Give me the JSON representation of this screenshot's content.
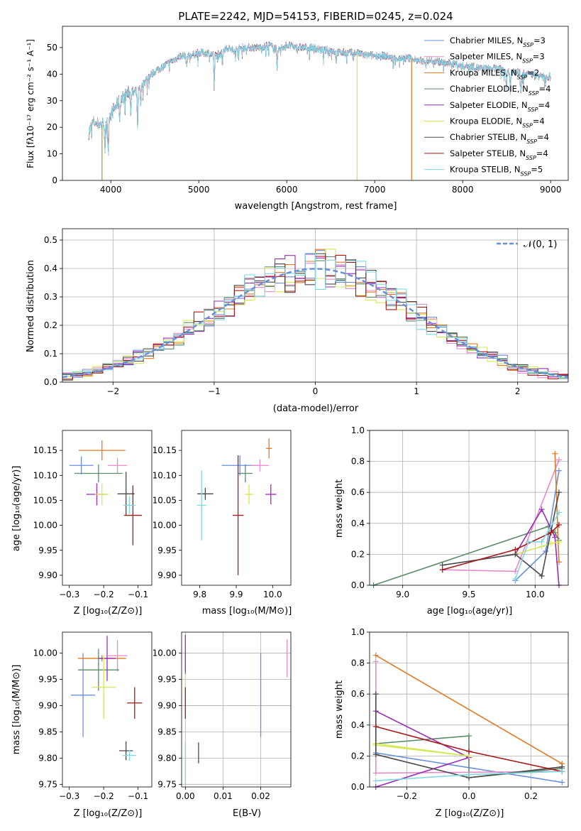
{
  "figure_title": "PLATE=2242, MJD=54153, FIBERID=0245, z=0.024",
  "labels": {
    "spec_y": "Flux [fλ10⁻¹⁷ erg cm⁻² s⁻¹ A⁻¹]",
    "spec_x": "wavelength [Angstrom, rest frame]",
    "hist_y": "Normed distribution",
    "hist_x": "(data-model)/error",
    "normal_legend": "𝒩(0, 1)",
    "age_y": "age  [log₁₀(age/yr)]",
    "Z_x": "Z [log₁₀(Z/Z⊙)]",
    "mass_x": "mass [log₁₀(M/M⊙)]",
    "mass_y": "mass [log₁₀(M/M⊙)]",
    "ebv_x": "E(B-V)",
    "mw_y": "mass weight",
    "age_x": "age  [log₁₀(age/yr)]"
  },
  "models": [
    {
      "name": "Chabrier MILES, N",
      "sub": "SSP",
      "n": "=3",
      "color": "#6a8fdc"
    },
    {
      "name": "Salpeter MILES, N",
      "sub": "SSP",
      "n": "=3",
      "color": "#e88ac8"
    },
    {
      "name": "Kroupa MILES, N",
      "sub": "SSP",
      "n": "=2",
      "color": "#e37a23"
    },
    {
      "name": "Chabrier ELODIE, N",
      "sub": "SSP",
      "n": "=4",
      "color": "#5a8c68"
    },
    {
      "name": "Salpeter ELODIE, N",
      "sub": "SSP",
      "n": "=4",
      "color": "#9a2cba"
    },
    {
      "name": "Kroupa ELODIE, N",
      "sub": "SSP",
      "n": "=4",
      "color": "#d6e855"
    },
    {
      "name": "Chabrier STELIB, N",
      "sub": "SSP",
      "n": "=4",
      "color": "#4a4a4a"
    },
    {
      "name": "Salpeter STELIB, N",
      "sub": "SSP",
      "n": "=4",
      "color": "#a8181a"
    },
    {
      "name": "Kroupa STELIB, N",
      "sub": "SSP",
      "n": "=5",
      "color": "#7fd8e0"
    }
  ],
  "chart_data": [
    {
      "type": "line",
      "panel": "spectrum",
      "xlim": [
        3450,
        9200
      ],
      "ylim": [
        0,
        58
      ],
      "xticks": [
        4000,
        5000,
        6000,
        7000,
        8000,
        9000
      ],
      "yticks": [
        0,
        10,
        20,
        30,
        40,
        50
      ],
      "grid": false,
      "legend": "top-right",
      "continuum": [
        [
          3750,
          18
        ],
        [
          3800,
          22
        ],
        [
          3900,
          21
        ],
        [
          4000,
          25
        ],
        [
          4100,
          30
        ],
        [
          4200,
          33
        ],
        [
          4300,
          33
        ],
        [
          4400,
          38
        ],
        [
          4500,
          41
        ],
        [
          4600,
          43
        ],
        [
          4700,
          45
        ],
        [
          4800,
          47
        ],
        [
          4900,
          47
        ],
        [
          5000,
          48
        ],
        [
          5100,
          48
        ],
        [
          5200,
          47
        ],
        [
          5300,
          50
        ],
        [
          5400,
          49
        ],
        [
          5500,
          50
        ],
        [
          5600,
          50
        ],
        [
          5700,
          50
        ],
        [
          5800,
          51
        ],
        [
          5900,
          49
        ],
        [
          6000,
          51
        ],
        [
          6100,
          50
        ],
        [
          6200,
          50
        ],
        [
          6300,
          50
        ],
        [
          6400,
          49
        ],
        [
          6500,
          49
        ],
        [
          6600,
          48
        ],
        [
          6700,
          48
        ],
        [
          6800,
          48
        ],
        [
          6900,
          47
        ],
        [
          7000,
          47
        ],
        [
          7100,
          47
        ],
        [
          7200,
          46
        ],
        [
          7300,
          46
        ],
        [
          7400,
          46
        ],
        [
          7500,
          45
        ],
        [
          7600,
          45
        ],
        [
          7700,
          45
        ],
        [
          7800,
          44
        ],
        [
          7900,
          44
        ],
        [
          8000,
          43
        ],
        [
          8100,
          43
        ],
        [
          8200,
          42
        ],
        [
          8300,
          42
        ],
        [
          8400,
          42
        ],
        [
          8500,
          41
        ],
        [
          8600,
          41
        ],
        [
          8700,
          40
        ],
        [
          8800,
          40
        ],
        [
          8900,
          39
        ],
        [
          9000,
          39
        ]
      ],
      "absorption": [
        [
          3934,
          14
        ],
        [
          3969,
          14
        ],
        [
          4102,
          8
        ],
        [
          4227,
          7
        ],
        [
          4304,
          16
        ],
        [
          4340,
          8
        ],
        [
          4861,
          5
        ],
        [
          5175,
          14
        ],
        [
          5270,
          6
        ],
        [
          5890,
          9
        ],
        [
          6563,
          4
        ],
        [
          8498,
          7
        ],
        [
          8542,
          8
        ],
        [
          8662,
          7
        ]
      ],
      "dropouts": [
        {
          "x": 3900,
          "color": "#a8a83a"
        },
        {
          "x": 6800,
          "color": "#d6e855"
        },
        {
          "x": 7420,
          "color": "#e37a23"
        }
      ]
    },
    {
      "type": "bar",
      "panel": "residual-histogram",
      "xlim": [
        -2.5,
        2.5
      ],
      "ylim": [
        0,
        0.54
      ],
      "xticks": [
        -2,
        -1,
        0,
        1,
        2
      ],
      "yticks": [
        0.0,
        0.1,
        0.2,
        0.3,
        0.4,
        0.5
      ],
      "grid": true,
      "legend": "top-right",
      "normal_mu": 0,
      "normal_sigma": 1
    },
    {
      "type": "scatter",
      "panel": "age-vs-Z",
      "xlim": [
        -0.32,
        -0.06
      ],
      "ylim": [
        9.88,
        10.19
      ],
      "xticks": [
        -0.3,
        -0.2,
        -0.1
      ],
      "yticks": [
        9.9,
        9.95,
        10.0,
        10.05,
        10.1,
        10.15
      ],
      "grid": false,
      "points": [
        {
          "m": 0,
          "x": -0.265,
          "y": 10.12,
          "dx": 0.035,
          "dy": 0.018
        },
        {
          "m": 1,
          "x": -0.16,
          "y": 10.12,
          "dx": 0.028,
          "dy": 0.015
        },
        {
          "m": 2,
          "x": -0.205,
          "y": 10.15,
          "dx": 0.068,
          "dy": 0.02
        },
        {
          "m": 3,
          "x": -0.215,
          "y": 10.104,
          "dx": 0.07,
          "dy": 0.018
        },
        {
          "m": 4,
          "x": -0.22,
          "y": 10.062,
          "dx": 0.03,
          "dy": 0.022
        },
        {
          "m": 5,
          "x": -0.205,
          "y": 10.062,
          "dx": 0.02,
          "dy": 0.022
        },
        {
          "m": 6,
          "x": -0.135,
          "y": 10.063,
          "dx": 0.025,
          "dy": 0.044
        },
        {
          "m": 7,
          "x": -0.115,
          "y": 10.02,
          "dx": 0.026,
          "dy": 0.06
        },
        {
          "m": 8,
          "x": -0.125,
          "y": 10.04,
          "dx": 0.018,
          "dy": 0.018
        }
      ]
    },
    {
      "type": "scatter",
      "panel": "age-vs-mass",
      "xlim": [
        9.75,
        10.05
      ],
      "ylim": [
        9.88,
        10.19
      ],
      "xticks": [
        9.8,
        9.9,
        10.0
      ],
      "yticks": [
        9.9,
        9.95,
        10.0,
        10.05,
        10.1,
        10.15
      ],
      "grid": false,
      "points": [
        {
          "m": 0,
          "x": 9.91,
          "y": 10.12,
          "dx": 0.05,
          "dy": 0.02
        },
        {
          "m": 1,
          "x": 9.965,
          "y": 10.12,
          "dx": 0.025,
          "dy": 0.012
        },
        {
          "m": 2,
          "x": 9.99,
          "y": 10.154,
          "dx": 0.008,
          "dy": 0.02
        },
        {
          "m": 3,
          "x": 9.925,
          "y": 10.104,
          "dx": 0.02,
          "dy": 0.018
        },
        {
          "m": 4,
          "x": 9.995,
          "y": 10.062,
          "dx": 0.015,
          "dy": 0.02
        },
        {
          "m": 5,
          "x": 9.935,
          "y": 10.062,
          "dx": 0.012,
          "dy": 0.02
        },
        {
          "m": 6,
          "x": 9.815,
          "y": 10.063,
          "dx": 0.022,
          "dy": 0.012
        },
        {
          "m": 7,
          "x": 9.905,
          "y": 10.02,
          "dx": 0.015,
          "dy": 0.12
        },
        {
          "m": 8,
          "x": 9.805,
          "y": 10.04,
          "dx": 0.013,
          "dy": 0.07
        }
      ]
    },
    {
      "type": "line",
      "panel": "mass-weight-vs-age",
      "xlim": [
        8.75,
        10.25
      ],
      "ylim": [
        0,
        1
      ],
      "xticks": [
        9.0,
        9.5,
        10.0
      ],
      "yticks": [
        0.0,
        0.2,
        0.4,
        0.6,
        0.8,
        1.0
      ],
      "grid": true,
      "series": [
        {
          "m": 0,
          "x": [
            9.85,
            10.08,
            10.18
          ],
          "y": [
            0.03,
            0.22,
            0.74
          ]
        },
        {
          "m": 1,
          "x": [
            9.3,
            9.85,
            10.18
          ],
          "y": [
            0.1,
            0.09,
            0.81
          ]
        },
        {
          "m": 2,
          "x": [
            10.18,
            10.15
          ],
          "y": [
            0.15,
            0.85
          ]
        },
        {
          "m": 3,
          "x": [
            8.78,
            10.1,
            10.15,
            10.18
          ],
          "y": [
            0.0,
            0.38,
            0.34,
            0.29
          ]
        },
        {
          "m": 4,
          "x": [
            9.85,
            10.05,
            10.15,
            10.18
          ],
          "y": [
            0.2,
            0.49,
            0.31,
            0.0
          ]
        },
        {
          "m": 5,
          "x": [
            9.85,
            10.05,
            10.12,
            10.18
          ],
          "y": [
            0.2,
            0.25,
            0.27,
            0.28
          ]
        },
        {
          "m": 6,
          "x": [
            9.3,
            9.85,
            10.05,
            10.18
          ],
          "y": [
            0.13,
            0.2,
            0.06,
            0.6
          ]
        },
        {
          "m": 7,
          "x": [
            9.3,
            9.85,
            10.12,
            10.18
          ],
          "y": [
            0.1,
            0.23,
            0.34,
            0.39
          ]
        },
        {
          "m": 8,
          "x": [
            9.85,
            9.95,
            10.05,
            10.18
          ],
          "y": [
            0.04,
            0.28,
            0.28,
            0.47
          ]
        }
      ]
    },
    {
      "type": "scatter",
      "panel": "mass-vs-Z",
      "xlim": [
        -0.32,
        -0.06
      ],
      "ylim": [
        9.745,
        10.04
      ],
      "xticks": [
        -0.3,
        -0.2,
        -0.1
      ],
      "yticks": [
        9.75,
        9.8,
        9.85,
        9.9,
        9.95,
        10.0
      ],
      "grid": false,
      "points": [
        {
          "m": 0,
          "x": -0.26,
          "y": 9.92,
          "dx": 0.035,
          "dy": 0.08
        },
        {
          "m": 1,
          "x": -0.16,
          "y": 9.995,
          "dx": 0.028,
          "dy": 0.03
        },
        {
          "m": 2,
          "x": -0.205,
          "y": 9.99,
          "dx": 0.07,
          "dy": 0.006
        },
        {
          "m": 3,
          "x": -0.215,
          "y": 9.968,
          "dx": 0.06,
          "dy": 0.04
        },
        {
          "m": 4,
          "x": -0.19,
          "y": 9.99,
          "dx": 0.025,
          "dy": 0.043
        },
        {
          "m": 5,
          "x": -0.2,
          "y": 9.935,
          "dx": 0.035,
          "dy": 0.06
        },
        {
          "m": 6,
          "x": -0.135,
          "y": 9.814,
          "dx": 0.02,
          "dy": 0.018
        },
        {
          "m": 7,
          "x": -0.11,
          "y": 9.905,
          "dx": 0.022,
          "dy": 0.03
        },
        {
          "m": 8,
          "x": -0.125,
          "y": 9.805,
          "dx": 0.02,
          "dy": 0.01
        }
      ]
    },
    {
      "type": "scatter",
      "panel": "mass-vs-EBV",
      "xlim": [
        -0.001,
        0.028
      ],
      "ylim": [
        9.745,
        10.04
      ],
      "xticks": [
        0.0,
        0.01,
        0.02
      ],
      "yticks": [
        9.75,
        9.8,
        9.85,
        9.9,
        9.95,
        10.0
      ],
      "grid": true,
      "points": [
        {
          "m": 0,
          "x": 0.02,
          "y": 9.92,
          "dx": 0,
          "dy": 0.08
        },
        {
          "m": 1,
          "x": 0.027,
          "y": 9.99,
          "dx": 0,
          "dy": 0.036
        },
        {
          "m": 2,
          "x": 0.0,
          "y": 9.99,
          "dx": 0,
          "dy": 0.005
        },
        {
          "m": 3,
          "x": 0.0,
          "y": 9.97,
          "dx": 0,
          "dy": 0.01
        },
        {
          "m": 4,
          "x": 0.0,
          "y": 10.0,
          "dx": 0,
          "dy": 0.035
        },
        {
          "m": 5,
          "x": 0.0,
          "y": 9.94,
          "dx": 0,
          "dy": 0.02
        },
        {
          "m": 6,
          "x": 0.0035,
          "y": 9.81,
          "dx": 0,
          "dy": 0.02
        },
        {
          "m": 7,
          "x": 0.0,
          "y": 9.905,
          "dx": 0,
          "dy": 0.03
        },
        {
          "m": 8,
          "x": 0.0,
          "y": 9.79,
          "dx": 0,
          "dy": 0.04
        }
      ]
    },
    {
      "type": "line",
      "panel": "mass-weight-vs-Z",
      "xlim": [
        -0.32,
        0.32
      ],
      "ylim": [
        0,
        1
      ],
      "xticks": [
        -0.2,
        0.0,
        0.2
      ],
      "yticks": [
        0.0,
        0.2,
        0.4,
        0.6,
        0.8,
        1.0
      ],
      "grid": true,
      "series": [
        {
          "m": 0,
          "x": [
            -0.3,
            0.3
          ],
          "y": [
            0.22,
            0.03
          ]
        },
        {
          "m": 1,
          "x": [
            -0.3,
            -0.3,
            0.3
          ],
          "y": [
            0.81,
            0.09,
            0.1
          ]
        },
        {
          "m": 2,
          "x": [
            -0.3,
            0.3
          ],
          "y": [
            0.85,
            0.15
          ]
        },
        {
          "m": 3,
          "x": [
            -0.3,
            0.0,
            0.0,
            0.3
          ],
          "y": [
            0.28,
            0.33,
            0.06,
            0.12
          ]
        },
        {
          "m": 4,
          "x": [
            -0.3,
            0.0,
            -0.3
          ],
          "y": [
            0.0,
            0.19,
            0.49
          ]
        },
        {
          "m": 5,
          "x": [
            -0.3,
            0.0,
            -0.3
          ],
          "y": [
            0.28,
            0.2,
            0.27
          ]
        },
        {
          "m": 6,
          "x": [
            -0.3,
            -0.3,
            0.0,
            0.3
          ],
          "y": [
            0.6,
            0.21,
            0.06,
            0.13
          ]
        },
        {
          "m": 7,
          "x": [
            -0.3,
            0.0,
            0.3
          ],
          "y": [
            0.39,
            0.23,
            0.1
          ]
        },
        {
          "m": 8,
          "x": [
            -0.3,
            0.0,
            0.3
          ],
          "y": [
            0.04,
            0.08,
            0.1
          ]
        }
      ]
    }
  ]
}
